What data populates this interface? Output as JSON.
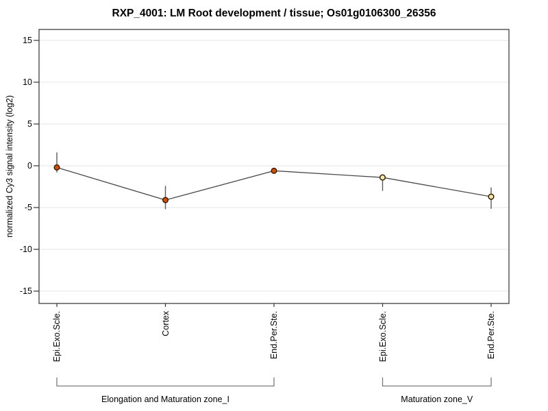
{
  "chart_data": {
    "type": "line",
    "title": "RXP_4001: LM Root development / tissue; Os01g0106300_26356",
    "ylabel": "normalized Cy3 signal intensity (log2)",
    "xlabel": "",
    "y_ticks": [
      15,
      10,
      5,
      0,
      -5,
      -10,
      -15
    ],
    "ylim": [
      -16.4,
      16.3
    ],
    "grid": true,
    "legend": "none",
    "categories": [
      "Epi.Exo.Scle.",
      "Cortex",
      "End.Per.Ste.",
      "Epi.Exo.Scle.",
      "End.Per.Ste."
    ],
    "series": [
      {
        "name": "normalized Cy3 signal intensity (log2)",
        "values": [
          -0.2,
          -4.1,
          -0.6,
          -1.4,
          -3.7
        ],
        "error_top": [
          1.6,
          -2.4,
          -0.3,
          -1.05,
          -2.6
        ],
        "error_bottom": [
          -0.8,
          -5.2,
          -0.9,
          -3.0,
          -5.15
        ],
        "point_fills": [
          "#d2500a",
          "#d2500a",
          "#d2500a",
          "#eeeab0",
          "#eeeab0"
        ]
      }
    ],
    "groups": [
      {
        "label": "Elongation and Maturation zone_I",
        "start_index": 0,
        "end_index": 2
      },
      {
        "label": "Maturation zone_V",
        "start_index": 3,
        "end_index": 4
      }
    ],
    "colors": {
      "series_line": "#4a4a4a",
      "error_bar": "#5a5a5a",
      "point_stroke": "#3a1c02",
      "point_fill_zone_i": "#d2500a",
      "point_fill_zone_v": "#eeeab0",
      "gridline": "#e4e4e4",
      "plot_border": "#3f3f3f",
      "tick": "#333333",
      "bracket": "#7a7a7a",
      "text": "#000000"
    }
  }
}
